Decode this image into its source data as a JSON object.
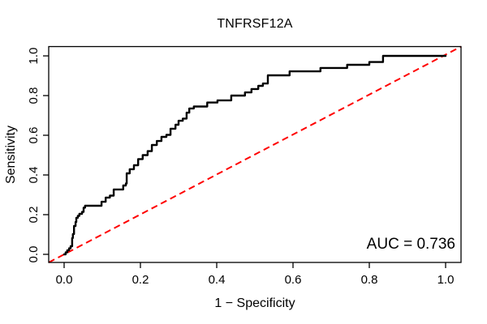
{
  "chart_data": {
    "type": "line",
    "subtype": "roc-step-curve",
    "title": "TNFRSF12A",
    "xlabel": "1 − Specificity",
    "ylabel": "Sensitivity",
    "auc_label": "AUC = 0.736",
    "auc_value": 0.736,
    "xlim": [
      0,
      1
    ],
    "ylim": [
      0,
      1
    ],
    "grid": false,
    "legend": "none",
    "x_ticks": [
      "0.0",
      "0.2",
      "0.4",
      "0.6",
      "0.8",
      "1.0"
    ],
    "y_ticks": [
      "0.0",
      "0.2",
      "0.4",
      "0.6",
      "0.8",
      "1.0"
    ],
    "x_tick_values": [
      0,
      0.2,
      0.4,
      0.6,
      0.8,
      1.0
    ],
    "y_tick_values": [
      0,
      0.2,
      0.4,
      0.6,
      0.8,
      1.0
    ],
    "colors": {
      "curve": "#000000",
      "reference_line": "#ff0000",
      "axis": "#000000",
      "background": "#ffffff"
    },
    "reference_line": {
      "from": [
        0,
        0
      ],
      "to": [
        1,
        1
      ],
      "style": "dashed"
    },
    "series": [
      {
        "name": "ROC curve",
        "step": "horizontal-first",
        "points": [
          [
            0.0,
            0.0
          ],
          [
            0.004,
            0.01
          ],
          [
            0.008,
            0.02
          ],
          [
            0.013,
            0.03
          ],
          [
            0.017,
            0.041
          ],
          [
            0.021,
            0.082
          ],
          [
            0.023,
            0.102
          ],
          [
            0.026,
            0.143
          ],
          [
            0.03,
            0.163
          ],
          [
            0.032,
            0.184
          ],
          [
            0.036,
            0.194
          ],
          [
            0.04,
            0.204
          ],
          [
            0.047,
            0.214
          ],
          [
            0.051,
            0.235
          ],
          [
            0.055,
            0.245
          ],
          [
            0.098,
            0.265
          ],
          [
            0.109,
            0.286
          ],
          [
            0.12,
            0.296
          ],
          [
            0.13,
            0.327
          ],
          [
            0.155,
            0.347
          ],
          [
            0.162,
            0.357
          ],
          [
            0.164,
            0.408
          ],
          [
            0.172,
            0.429
          ],
          [
            0.183,
            0.449
          ],
          [
            0.194,
            0.48
          ],
          [
            0.206,
            0.5
          ],
          [
            0.219,
            0.52
          ],
          [
            0.23,
            0.551
          ],
          [
            0.243,
            0.571
          ],
          [
            0.255,
            0.592
          ],
          [
            0.268,
            0.602
          ],
          [
            0.279,
            0.633
          ],
          [
            0.292,
            0.653
          ],
          [
            0.3,
            0.673
          ],
          [
            0.311,
            0.684
          ],
          [
            0.321,
            0.714
          ],
          [
            0.328,
            0.735
          ],
          [
            0.34,
            0.745
          ],
          [
            0.375,
            0.765
          ],
          [
            0.402,
            0.776
          ],
          [
            0.438,
            0.8
          ],
          [
            0.474,
            0.816
          ],
          [
            0.491,
            0.833
          ],
          [
            0.509,
            0.849
          ],
          [
            0.521,
            0.861
          ],
          [
            0.534,
            0.902
          ],
          [
            0.591,
            0.922
          ],
          [
            0.672,
            0.939
          ],
          [
            0.742,
            0.955
          ],
          [
            0.8,
            0.969
          ],
          [
            0.836,
            1.0
          ],
          [
            1.0,
            1.0
          ]
        ]
      }
    ]
  }
}
